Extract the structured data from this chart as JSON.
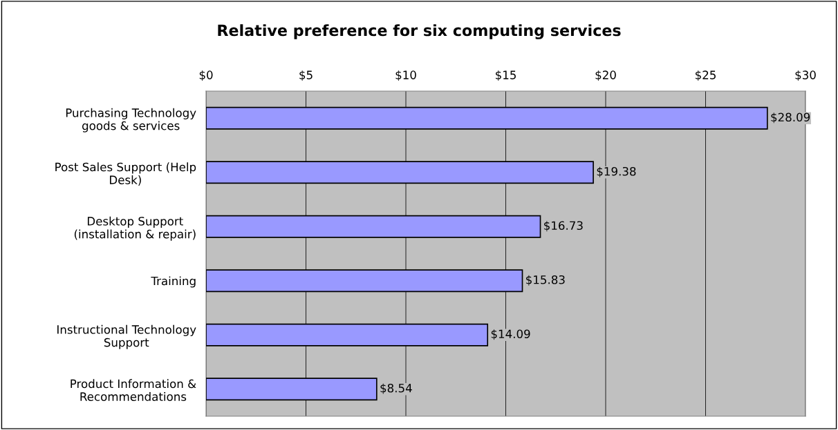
{
  "chart_data": {
    "type": "bar",
    "orientation": "horizontal",
    "title": "Relative preference for six computing services",
    "categories": [
      "Purchasing Technology\ngoods & services",
      "Post Sales Support (Help\nDesk)",
      "Desktop Support\n(installation & repair)",
      "Training",
      "Instructional Technology\nSupport",
      "Product Information &\nRecommendations"
    ],
    "values": [
      28.09,
      19.38,
      16.73,
      15.83,
      14.09,
      8.54
    ],
    "value_labels": [
      "$28.09",
      "$19.38",
      "$16.73",
      "$15.83",
      "$14.09",
      "$8.54"
    ],
    "color": "#9999ff",
    "xlim": [
      0,
      30
    ],
    "xticks": [
      {
        "value": 0,
        "label": "$0"
      },
      {
        "value": 5,
        "label": "$5"
      },
      {
        "value": 10,
        "label": "$10"
      },
      {
        "value": 15,
        "label": "$15"
      },
      {
        "value": 20,
        "label": "$20"
      },
      {
        "value": 25,
        "label": "$25"
      },
      {
        "value": 30,
        "label": "$30"
      }
    ],
    "grid": "x"
  }
}
